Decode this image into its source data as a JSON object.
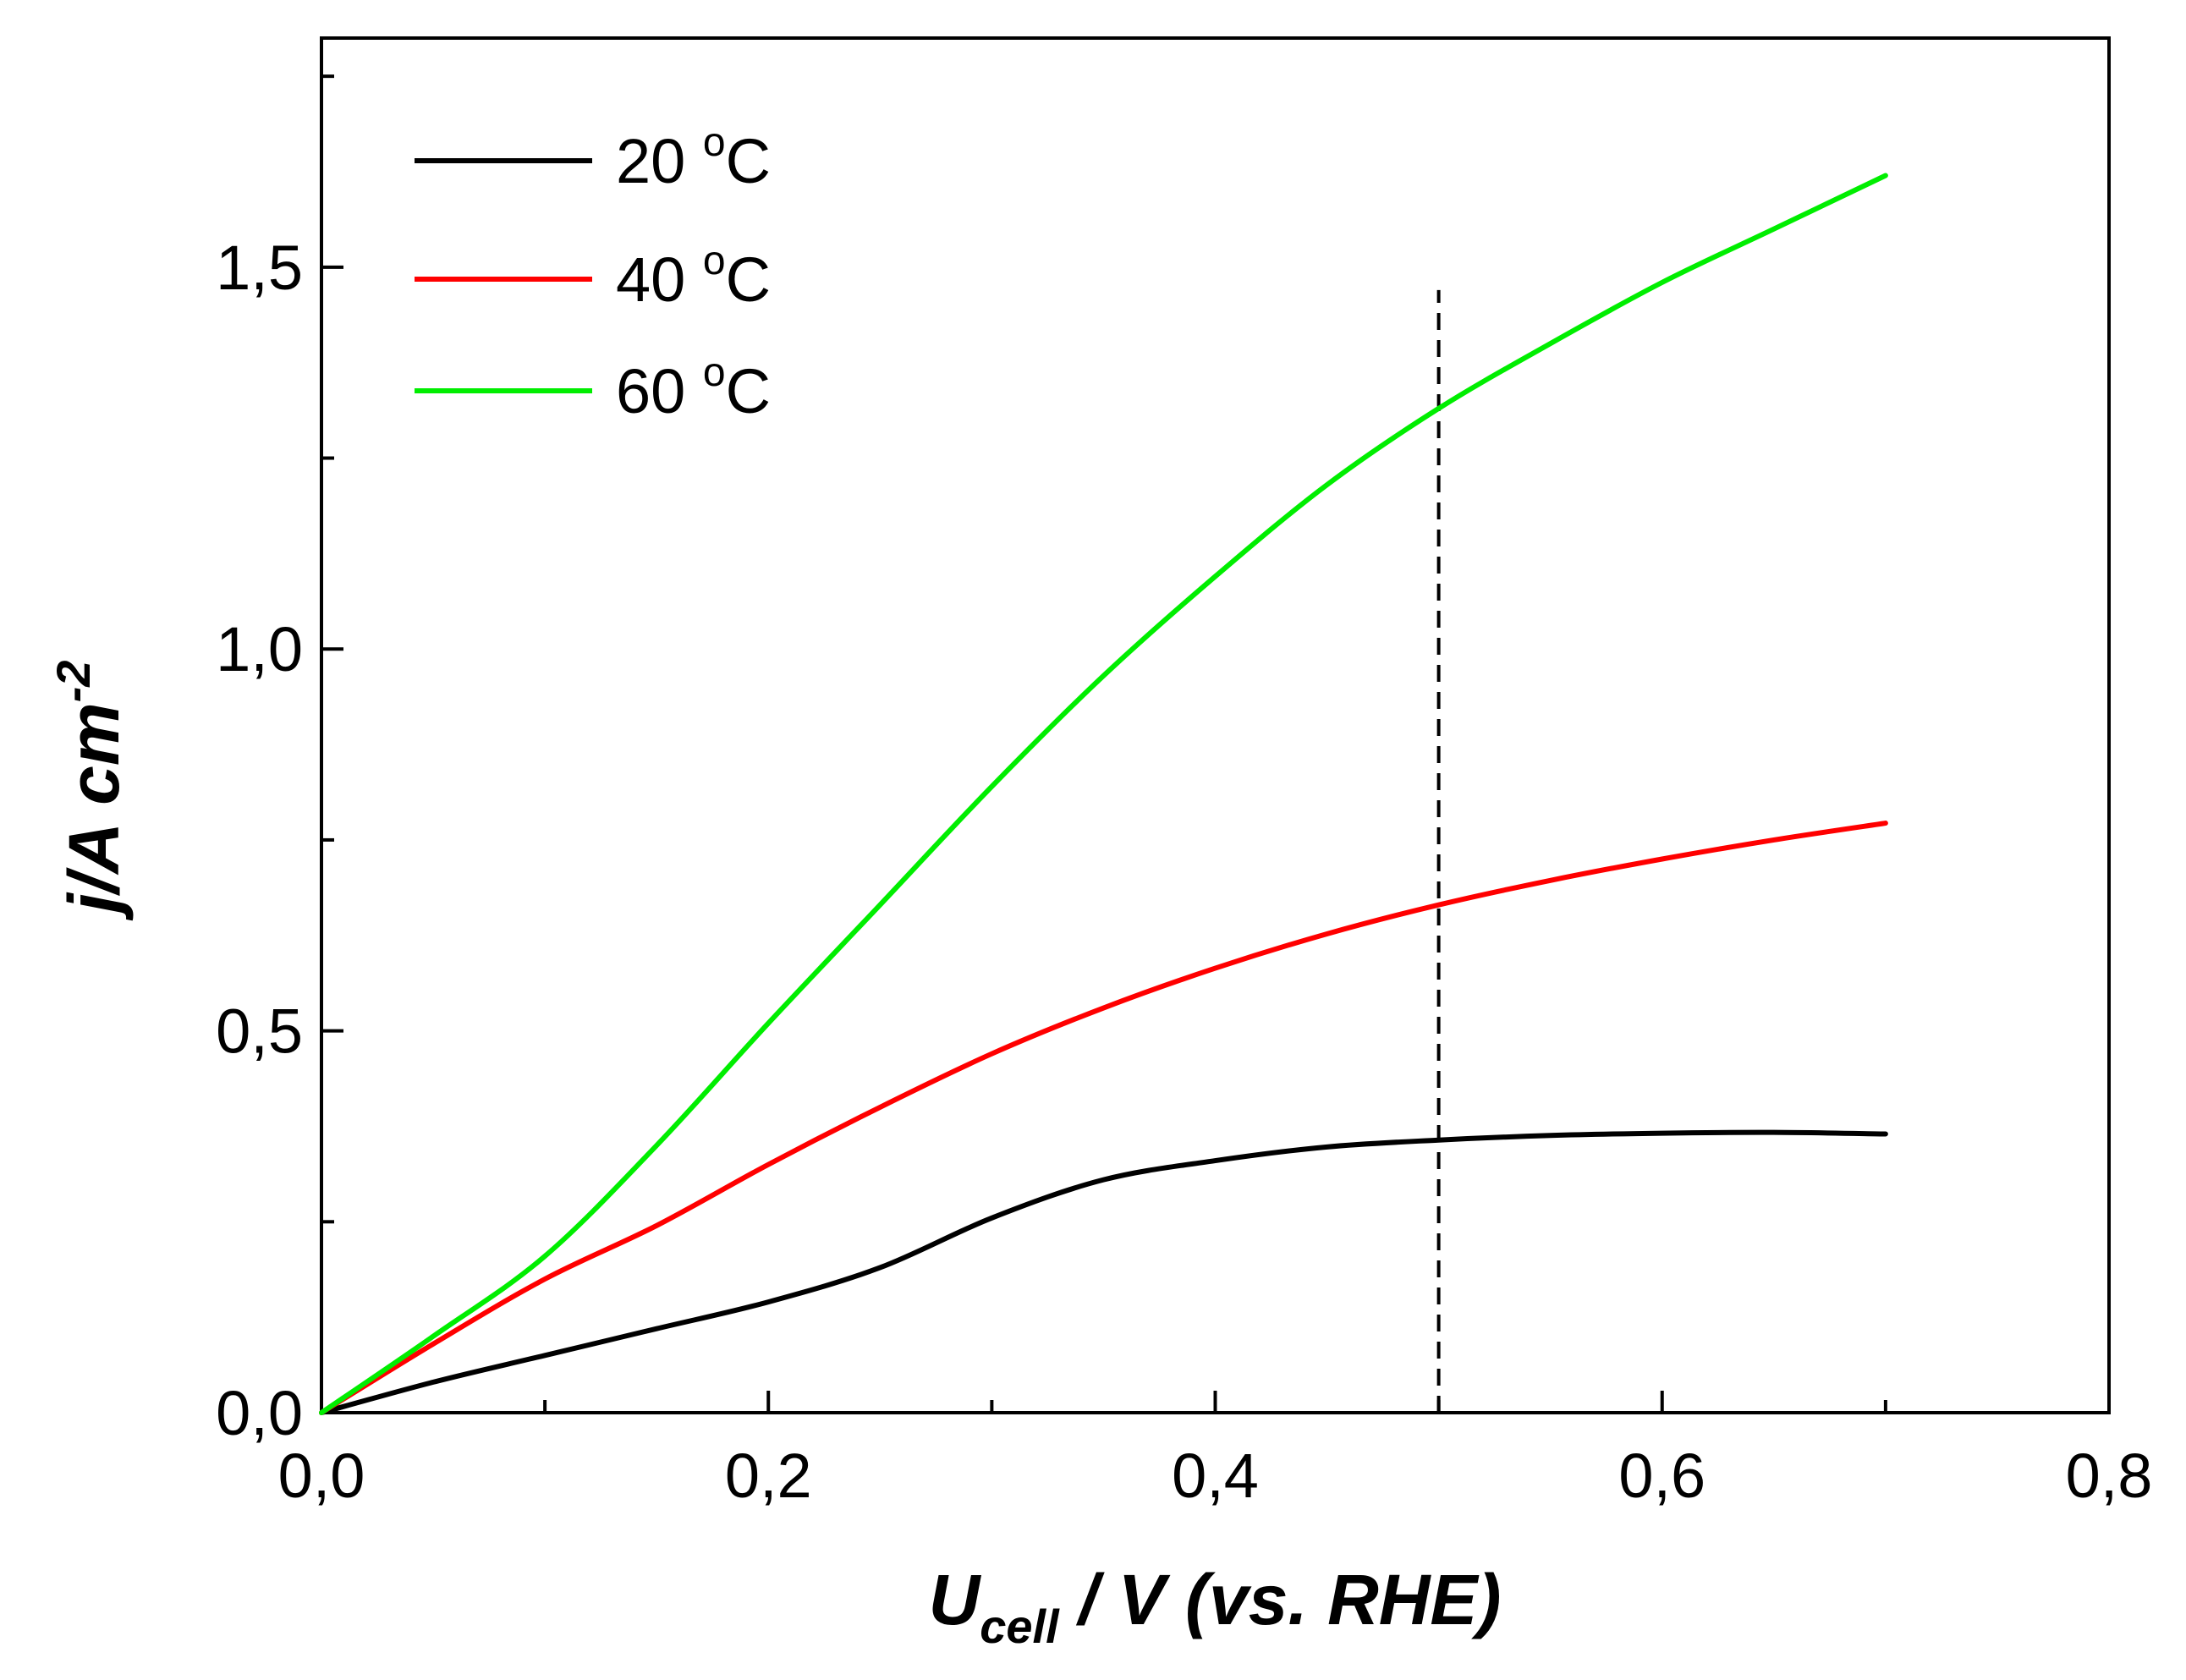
{
  "chart_data": {
    "type": "line",
    "title": "",
    "xlabel": {
      "main": "U",
      "subscript": "cell",
      "rest": " / V (vs. RHE)"
    },
    "ylabel": {
      "main": "j/A cm",
      "superscript": "-2"
    },
    "xlim": [
      0.0,
      0.8
    ],
    "ylim": [
      0.0,
      1.8
    ],
    "xticks": [
      {
        "value": 0.0,
        "label": "0,0"
      },
      {
        "value": 0.2,
        "label": "0,2"
      },
      {
        "value": 0.4,
        "label": "0,4"
      },
      {
        "value": 0.6,
        "label": "0,6"
      },
      {
        "value": 0.8,
        "label": "0,8"
      }
    ],
    "xminor": [
      0.1,
      0.3,
      0.5,
      0.7
    ],
    "yticks": [
      {
        "value": 0.0,
        "label": "0,0"
      },
      {
        "value": 0.5,
        "label": "0,5"
      },
      {
        "value": 1.0,
        "label": "1,0"
      },
      {
        "value": 1.5,
        "label": "1,5"
      }
    ],
    "yminor": [
      0.25,
      0.75,
      1.25,
      1.75
    ],
    "grid": false,
    "legend_position": "top-left",
    "series": [
      {
        "name": "20 °C",
        "label_main": "20 ",
        "label_sup": "o",
        "label_unit": "C",
        "color": "#000000",
        "x": [
          0.0,
          0.05,
          0.1,
          0.15,
          0.2,
          0.25,
          0.3,
          0.35,
          0.4,
          0.45,
          0.5,
          0.55,
          0.6,
          0.65,
          0.7
        ],
        "y": [
          0.0,
          0.04,
          0.075,
          0.11,
          0.145,
          0.19,
          0.255,
          0.305,
          0.33,
          0.348,
          0.357,
          0.363,
          0.366,
          0.367,
          0.365
        ]
      },
      {
        "name": "40 °C",
        "label_main": "40 ",
        "label_sup": "o",
        "label_unit": "C",
        "color": "#ff0000",
        "x": [
          0.0,
          0.05,
          0.1,
          0.15,
          0.2,
          0.25,
          0.3,
          0.35,
          0.4,
          0.45,
          0.5,
          0.55,
          0.6,
          0.65,
          0.7
        ],
        "y": [
          0.0,
          0.09,
          0.175,
          0.245,
          0.325,
          0.4,
          0.47,
          0.53,
          0.582,
          0.627,
          0.665,
          0.697,
          0.725,
          0.75,
          0.772
        ]
      },
      {
        "name": "60 °C",
        "label_main": "60 ",
        "label_sup": "o",
        "label_unit": "C",
        "color": "#00ee00",
        "x": [
          0.0,
          0.05,
          0.1,
          0.15,
          0.2,
          0.25,
          0.3,
          0.35,
          0.4,
          0.45,
          0.5,
          0.55,
          0.6,
          0.65,
          0.7
        ],
        "y": [
          0.0,
          0.1,
          0.205,
          0.35,
          0.51,
          0.665,
          0.82,
          0.965,
          1.095,
          1.215,
          1.315,
          1.4,
          1.48,
          1.55,
          1.62
        ]
      }
    ],
    "annotations": [
      {
        "type": "vertical-dashed-line",
        "x": 0.5,
        "y_from": 0.0,
        "y_to": 1.47,
        "color": "#000000"
      }
    ]
  }
}
